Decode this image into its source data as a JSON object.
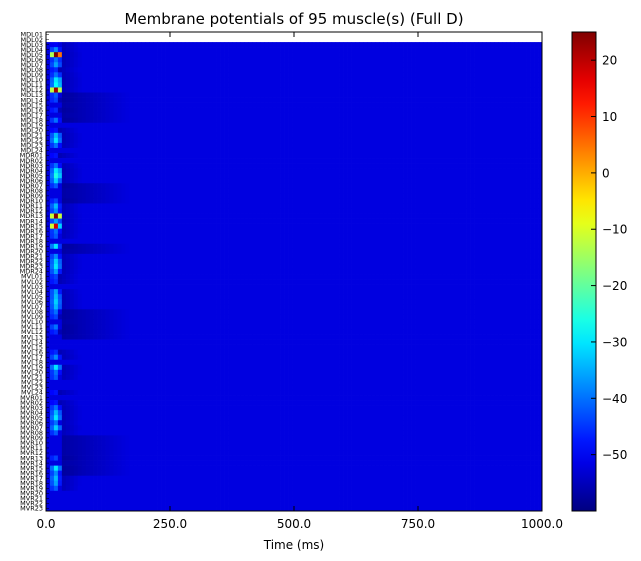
{
  "chart_data": {
    "type": "heatmap",
    "title": "Membrane potentials of 95 muscle(s) (Full D)",
    "xlabel": "Time (ms)",
    "ylabel": "",
    "xlim": [
      0,
      1000
    ],
    "x_ticks": [
      "0.0",
      "250.0",
      "500.0",
      "750.0",
      "1000.0"
    ],
    "x_tick_values": [
      0,
      250,
      500,
      750,
      1000
    ],
    "colorbar": {
      "colormap": "jet",
      "range": [
        -60,
        25
      ],
      "ticks": [
        "20",
        "10",
        "0",
        "−10",
        "−20",
        "−30",
        "−40",
        "−50"
      ],
      "tick_values": [
        20,
        10,
        0,
        -10,
        -20,
        -30,
        -40,
        -50
      ]
    },
    "row_labels": [
      "MDL01",
      "MDL02",
      "MDL03",
      "MDL04",
      "MDL05",
      "MDL06",
      "MDL07",
      "MDL08",
      "MDL09",
      "MDL10",
      "MDL11",
      "MDL12",
      "MDL13",
      "MDL14",
      "MDL15",
      "MDL16",
      "MDL17",
      "MDL18",
      "MDL19",
      "MDL20",
      "MDL21",
      "MDL22",
      "MDL23",
      "MDL24",
      "MDR01",
      "MDR02",
      "MDR03",
      "MDR04",
      "MDR05",
      "MDR06",
      "MDR07",
      "MDR08",
      "MDR09",
      "MDR10",
      "MDR11",
      "MDR12",
      "MDR13",
      "MDR14",
      "MDR15",
      "MDR16",
      "MDR17",
      "MDR18",
      "MDR19",
      "MDR20",
      "MDR21",
      "MDR22",
      "MDR23",
      "MDR24",
      "MVL01",
      "MVL02",
      "MVL03",
      "MVL04",
      "MVL05",
      "MVL06",
      "MVL07",
      "MVL08",
      "MVL09",
      "MVL10",
      "MVL11",
      "MVL12",
      "MVL13",
      "MVL14",
      "MVL15",
      "MVL16",
      "MVL17",
      "MVL18",
      "MVL19",
      "MVL20",
      "MVL21",
      "MVL22",
      "MVL23",
      "MVL24",
      "MVR01",
      "MVR02",
      "MVR03",
      "MVR04",
      "MVR05",
      "MVR06",
      "MVR07",
      "MVR08",
      "MVR09",
      "MVR10",
      "MVR11",
      "MVR12",
      "MVR13",
      "MVR14",
      "MVR15",
      "MVR16",
      "MVR17",
      "MVR18",
      "MVR19",
      "MVR20",
      "MVR21",
      "MVR22",
      "MVR23"
    ],
    "baseline_mv": -52,
    "baseline_range_ms": [
      0,
      1000
    ],
    "rows_without_data": [
      0,
      1
    ],
    "transient_rows": [
      {
        "row": 2,
        "peak_mv": -50,
        "width_ms": 20
      },
      {
        "row": 3,
        "peak_mv": -38,
        "width_ms": 22
      },
      {
        "row": 4,
        "peak_mv": 25,
        "width_ms": 26
      },
      {
        "row": 5,
        "peak_mv": -40,
        "width_ms": 24
      },
      {
        "row": 6,
        "peak_mv": -36,
        "width_ms": 24
      },
      {
        "row": 7,
        "peak_mv": -46,
        "width_ms": 18
      },
      {
        "row": 8,
        "peak_mv": -40,
        "width_ms": 24
      },
      {
        "row": 9,
        "peak_mv": -30,
        "width_ms": 26
      },
      {
        "row": 10,
        "peak_mv": -28,
        "width_ms": 26
      },
      {
        "row": 11,
        "peak_mv": 22,
        "width_ms": 24
      },
      {
        "row": 12,
        "peak_mv": -42,
        "width_ms": 20
      },
      {
        "row": 13,
        "peak_mv": -44,
        "width_ms": 18
      },
      {
        "row": 15,
        "peak_mv": -46,
        "width_ms": 18
      },
      {
        "row": 17,
        "peak_mv": -40,
        "width_ms": 22
      },
      {
        "row": 19,
        "peak_mv": -48,
        "width_ms": 18
      },
      {
        "row": 20,
        "peak_mv": -34,
        "width_ms": 24
      },
      {
        "row": 21,
        "peak_mv": -30,
        "width_ms": 24
      },
      {
        "row": 22,
        "peak_mv": -40,
        "width_ms": 22
      },
      {
        "row": 24,
        "peak_mv": -48,
        "width_ms": 18
      },
      {
        "row": 26,
        "peak_mv": -40,
        "width_ms": 22
      },
      {
        "row": 27,
        "peak_mv": -30,
        "width_ms": 26
      },
      {
        "row": 28,
        "peak_mv": -26,
        "width_ms": 26
      },
      {
        "row": 29,
        "peak_mv": -32,
        "width_ms": 24
      },
      {
        "row": 30,
        "peak_mv": -42,
        "width_ms": 20
      },
      {
        "row": 33,
        "peak_mv": -44,
        "width_ms": 20
      },
      {
        "row": 34,
        "peak_mv": -34,
        "width_ms": 22
      },
      {
        "row": 35,
        "peak_mv": -38,
        "width_ms": 22
      },
      {
        "row": 36,
        "peak_mv": 24,
        "width_ms": 24
      },
      {
        "row": 37,
        "peak_mv": -36,
        "width_ms": 24
      },
      {
        "row": 38,
        "peak_mv": 18,
        "width_ms": 22
      },
      {
        "row": 39,
        "peak_mv": -40,
        "width_ms": 22
      },
      {
        "row": 40,
        "peak_mv": -42,
        "width_ms": 20
      },
      {
        "row": 42,
        "peak_mv": -30,
        "width_ms": 22
      },
      {
        "row": 44,
        "peak_mv": -38,
        "width_ms": 22
      },
      {
        "row": 45,
        "peak_mv": -32,
        "width_ms": 24
      },
      {
        "row": 46,
        "peak_mv": -30,
        "width_ms": 24
      },
      {
        "row": 47,
        "peak_mv": -36,
        "width_ms": 22
      },
      {
        "row": 48,
        "peak_mv": -44,
        "width_ms": 18
      },
      {
        "row": 49,
        "peak_mv": -46,
        "width_ms": 18
      },
      {
        "row": 51,
        "peak_mv": -36,
        "width_ms": 22
      },
      {
        "row": 52,
        "peak_mv": -34,
        "width_ms": 24
      },
      {
        "row": 53,
        "peak_mv": -32,
        "width_ms": 24
      },
      {
        "row": 54,
        "peak_mv": -34,
        "width_ms": 24
      },
      {
        "row": 55,
        "peak_mv": -40,
        "width_ms": 20
      },
      {
        "row": 56,
        "peak_mv": -44,
        "width_ms": 18
      },
      {
        "row": 58,
        "peak_mv": -40,
        "width_ms": 20
      },
      {
        "row": 59,
        "peak_mv": -46,
        "width_ms": 18
      },
      {
        "row": 63,
        "peak_mv": -46,
        "width_ms": 18
      },
      {
        "row": 64,
        "peak_mv": -38,
        "width_ms": 22
      },
      {
        "row": 66,
        "peak_mv": -30,
        "width_ms": 24
      },
      {
        "row": 67,
        "peak_mv": -40,
        "width_ms": 22
      },
      {
        "row": 68,
        "peak_mv": -42,
        "width_ms": 20
      },
      {
        "row": 71,
        "peak_mv": -48,
        "width_ms": 18
      },
      {
        "row": 73,
        "peak_mv": -48,
        "width_ms": 18
      },
      {
        "row": 74,
        "peak_mv": -40,
        "width_ms": 22
      },
      {
        "row": 75,
        "peak_mv": -34,
        "width_ms": 24
      },
      {
        "row": 76,
        "peak_mv": -30,
        "width_ms": 24
      },
      {
        "row": 77,
        "peak_mv": -40,
        "width_ms": 20
      },
      {
        "row": 78,
        "peak_mv": -32,
        "width_ms": 24
      },
      {
        "row": 79,
        "peak_mv": -42,
        "width_ms": 20
      },
      {
        "row": 84,
        "peak_mv": -44,
        "width_ms": 20
      },
      {
        "row": 86,
        "peak_mv": -30,
        "width_ms": 24
      },
      {
        "row": 87,
        "peak_mv": -38,
        "width_ms": 22
      },
      {
        "row": 88,
        "peak_mv": -34,
        "width_ms": 22
      },
      {
        "row": 89,
        "peak_mv": -36,
        "width_ms": 22
      },
      {
        "row": 90,
        "peak_mv": -42,
        "width_ms": 20
      }
    ],
    "transient_start_ms": 8,
    "dark_recovery_rows": [
      12,
      13,
      14,
      15,
      16,
      17,
      30,
      31,
      32,
      33,
      42,
      43,
      55,
      56,
      57,
      58,
      59,
      60,
      80,
      81,
      82,
      83,
      84,
      85,
      86,
      87
    ],
    "dark_recovery_mv": -57,
    "dark_recovery_range_ms": [
      30,
      170
    ],
    "colors": {
      "background": "#ffffff",
      "axis": "#000000"
    }
  }
}
